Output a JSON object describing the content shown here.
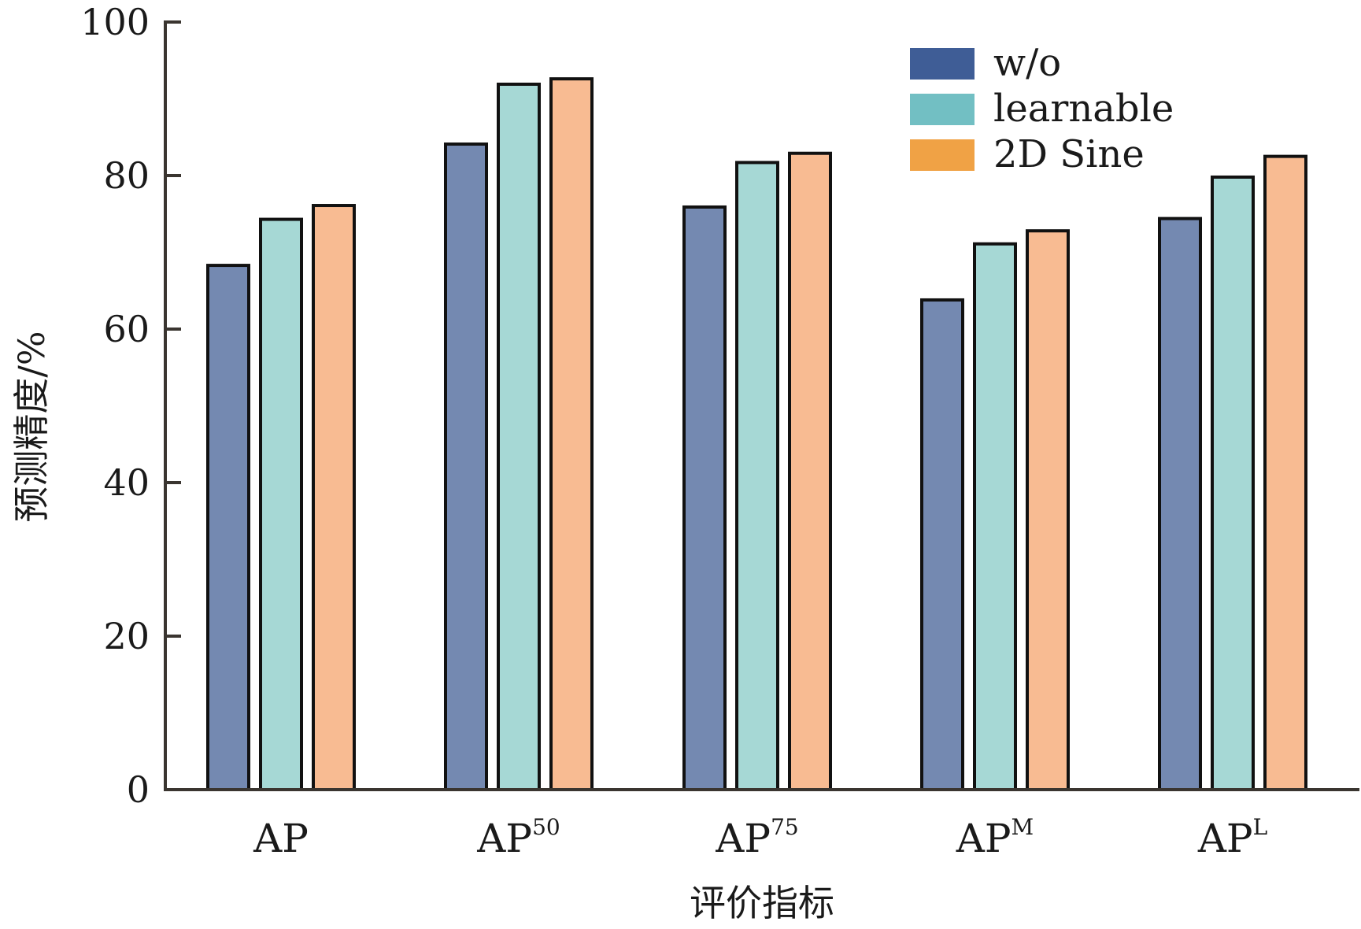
{
  "chart_data": {
    "type": "bar",
    "title": "",
    "xlabel": "评价指标",
    "ylabel": "预测精度/%",
    "ylim": [
      0,
      100
    ],
    "yticks": [
      0,
      20,
      40,
      60,
      80,
      100
    ],
    "categories": [
      {
        "base": "AP",
        "sup": ""
      },
      {
        "base": "AP",
        "sup": "50"
      },
      {
        "base": "AP",
        "sup": "75"
      },
      {
        "base": "AP",
        "sup": "M"
      },
      {
        "base": "AP",
        "sup": "L"
      }
    ],
    "series": [
      {
        "name": "w/o",
        "legend_color": "#3f5d96",
        "bar_color": "#7489b1",
        "values": [
          68.3,
          84.1,
          75.9,
          63.8,
          74.4
        ]
      },
      {
        "name": "learnable",
        "legend_color": "#72bfc3",
        "bar_color": "#a6d8d5",
        "values": [
          74.3,
          91.9,
          81.7,
          71.1,
          79.8
        ]
      },
      {
        "name": "2D Sine",
        "legend_color": "#f0a245",
        "bar_color": "#f8bb92",
        "values": [
          76.1,
          92.6,
          82.9,
          72.8,
          82.5
        ]
      }
    ],
    "legend_position": "top-right",
    "grid": false
  }
}
